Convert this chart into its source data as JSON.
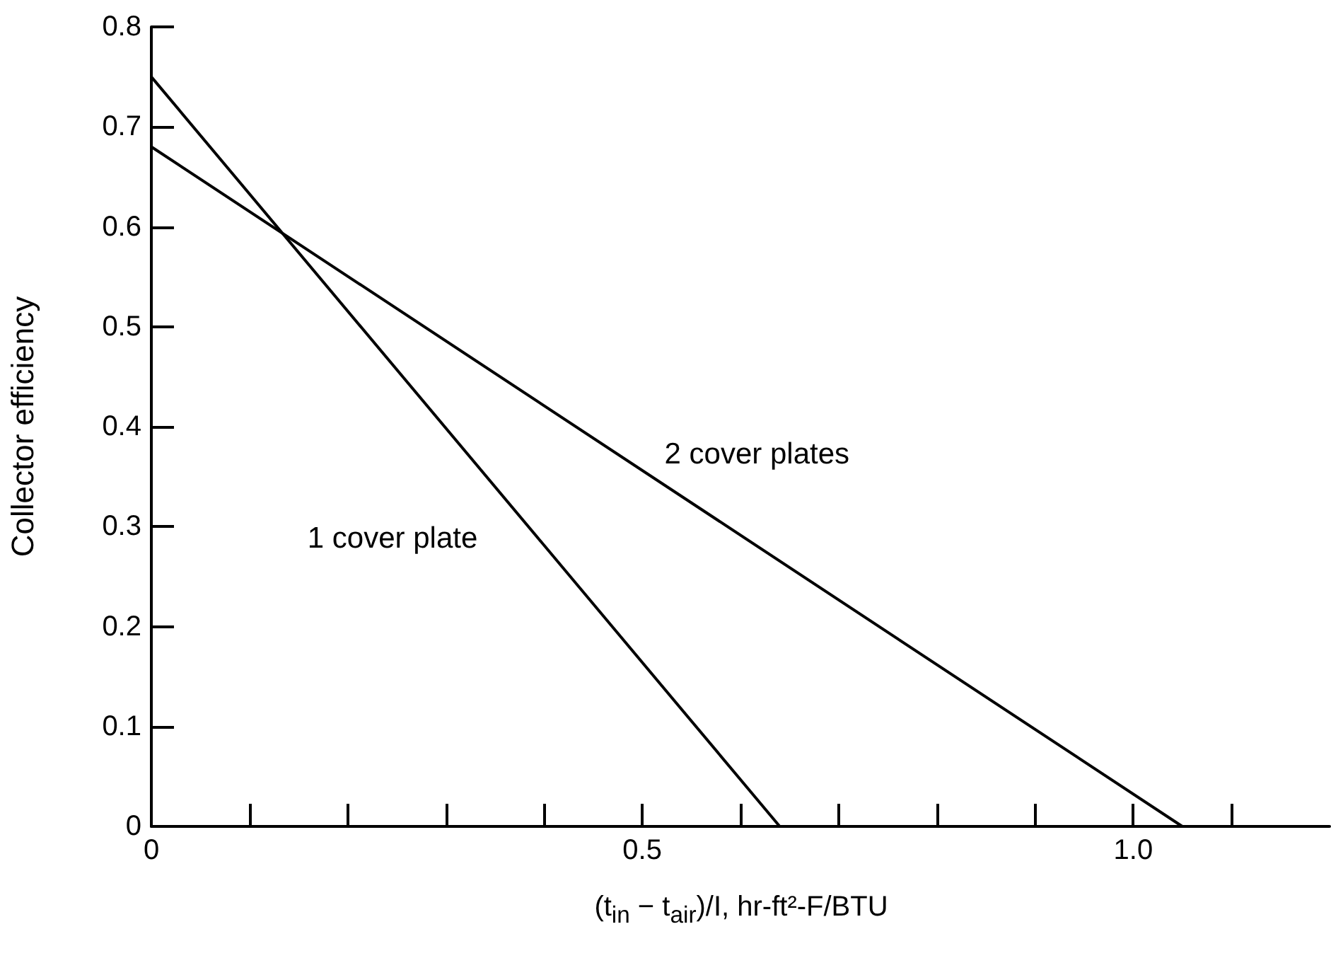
{
  "chart_data": {
    "type": "line",
    "xlabel": "(t$_{in}$ − t$_{air}$)/I, hr-ft²-F/BTU",
    "ylabel": "Collector efficiency",
    "series": [
      {
        "name": "1 cover plate",
        "color": "#000000",
        "x": [
          0,
          0.64
        ],
        "values": [
          0.75,
          0
        ]
      },
      {
        "name": "2 cover plates",
        "color": "#000000",
        "x": [
          0,
          1.05
        ],
        "values": [
          0.68,
          0
        ]
      }
    ],
    "xlim": [
      0,
      1.2
    ],
    "ylim": [
      0,
      0.8
    ],
    "xticks": [
      0,
      {
        "value": 0.1,
        "label": null
      },
      {
        "value": 0.2,
        "label": null
      },
      {
        "value": 0.3,
        "label": null
      },
      {
        "value": 0.4,
        "label": null
      },
      0.5,
      {
        "value": 0.6,
        "label": null
      },
      {
        "value": 0.7,
        "label": null
      },
      {
        "value": 0.8,
        "label": null
      },
      {
        "value": 0.9,
        "label": null
      },
      {
        "value": 1,
        "label": "1.0"
      },
      {
        "value": 1.1,
        "label": null
      }
    ],
    "yticks": [
      0,
      0.1,
      0.2,
      0.3,
      0.4,
      0.5,
      0.6,
      0.7,
      0.8
    ],
    "grid": false,
    "legend": false,
    "marker": "none",
    "line_style": "solid"
  }
}
